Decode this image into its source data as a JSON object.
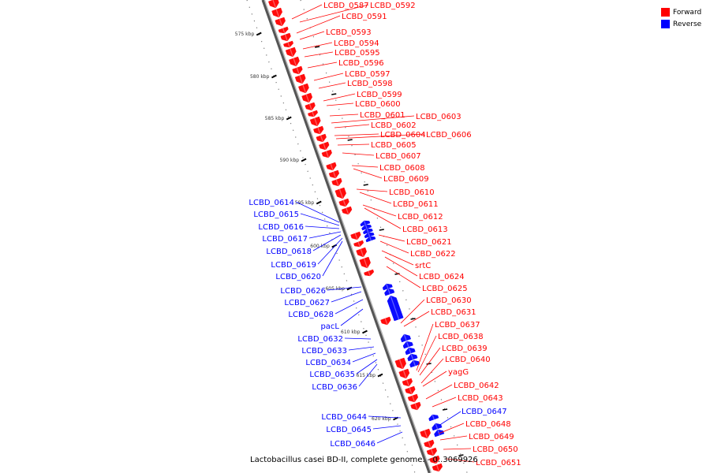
{
  "caption": "Lactobacillus casei BD-II, complete genome. - 0..3069926",
  "legend": [
    {
      "label": "Forward",
      "color": "#ff0000"
    },
    {
      "label": "Reverse",
      "color": "#0000ff"
    }
  ],
  "colors": {
    "forward": "#ff0000",
    "reverse": "#0000ff",
    "backbone": "#555555"
  },
  "ticks": [
    "575 kbp",
    "580 kbp",
    "585 kbp",
    "590 kbp",
    "595 kbp",
    "600 kbp",
    "605 kbp",
    "610 kbp",
    "615 kbp",
    "620 kbp"
  ],
  "forward_genes": [
    "LCBD_0587",
    "LCBD_0592",
    "LCBD_0591",
    "LCBD_0593",
    "LCBD_0594",
    "LCBD_0595",
    "LCBD_0596",
    "LCBD_0597",
    "LCBD_0598",
    "LCBD_0599",
    "LCBD_0600",
    "LCBD_0601",
    "LCBD_0603",
    "LCBD_0602",
    "LCBD_0604",
    "LCBD_0606",
    "LCBD_0605",
    "LCBD_0607",
    "LCBD_0608",
    "LCBD_0609",
    "LCBD_0610",
    "LCBD_0611",
    "LCBD_0612",
    "LCBD_0613",
    "LCBD_0621",
    "LCBD_0622",
    "srtC",
    "LCBD_0624",
    "LCBD_0625",
    "LCBD_0630",
    "LCBD_0631",
    "LCBD_0637",
    "LCBD_0638",
    "LCBD_0639",
    "LCBD_0640",
    "yagG",
    "LCBD_0642",
    "LCBD_0643",
    "LCBD_0648",
    "LCBD_0649",
    "LCBD_0650",
    "LCBD_0651"
  ],
  "reverse_genes": [
    "LCBD_0614",
    "LCBD_0615",
    "LCBD_0616",
    "LCBD_0617",
    "LCBD_0618",
    "LCBD_0619",
    "LCBD_0620",
    "LCBD_0626",
    "LCBD_0627",
    "LCBD_0628",
    "pacL",
    "LCBD_0632",
    "LCBD_0633",
    "LCBD_0634",
    "LCBD_0635",
    "LCBD_0636",
    "LCBD_0644",
    "LCBD_0645",
    "LCBD_0646",
    "LCBD_0647"
  ]
}
